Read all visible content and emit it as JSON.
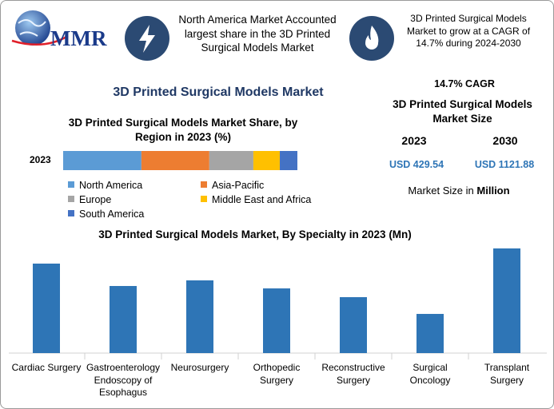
{
  "logo": "MMR",
  "highlights": [
    "North America Market Accounted largest share in the 3D Printed Surgical Models Market",
    "3D Printed Surgical Models Market to grow at a CAGR of 14.7% during 2024-2030"
  ],
  "main_title": "3D Printed Surgical Models Market",
  "market_size": {
    "cagr": "14.7% CAGR",
    "title": "3D Printed Surgical Models Market Size",
    "years": [
      "2023",
      "2030"
    ],
    "amounts": [
      "USD 429.54",
      "USD 1121.88"
    ],
    "note": "Market Size in",
    "unit": "Million"
  },
  "chart_data": [
    {
      "type": "bar",
      "stacked": true,
      "orientation": "horizontal",
      "title": "3D Printed Surgical Models Market Share, by Region in 2023 (%)",
      "categories": [
        "2023"
      ],
      "series": [
        {
          "name": "North America",
          "color": "#5b9bd5",
          "values": [
            33.4
          ]
        },
        {
          "name": "Asia-Pacific",
          "color": "#ed7d31",
          "values": [
            29.0
          ]
        },
        {
          "name": "Europe",
          "color": "#a5a5a5",
          "values": [
            18.8
          ]
        },
        {
          "name": "Middle East and Africa",
          "color": "#ffc000",
          "values": [
            11.3
          ]
        },
        {
          "name": "South America",
          "color": "#4472c4",
          "values": [
            7.5
          ]
        }
      ]
    },
    {
      "type": "bar",
      "title": "3D Printed Surgical Models Market, By Specialty in 2023 (Mn)",
      "categories": [
        "Cardiac Surgery",
        "Gastroenterology Endoscopy of Esophagus",
        "Neurosurgery",
        "Orthopedic Surgery",
        "Reconstructive Surgery",
        "Surgical Oncology",
        "Transplant Surgery"
      ],
      "values": [
        77.9,
        58.4,
        63.3,
        56.3,
        48.7,
        34.1,
        91.1
      ],
      "color": "#2e75b6"
    }
  ]
}
